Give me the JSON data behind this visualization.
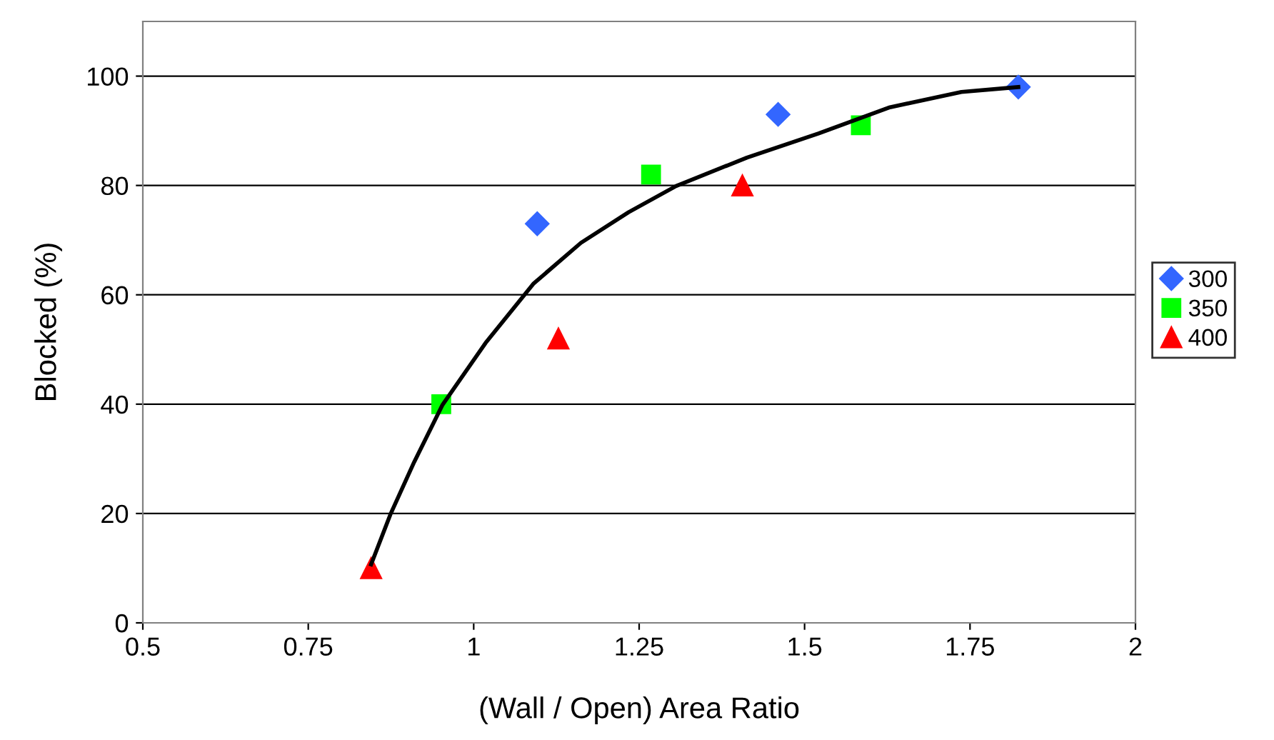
{
  "chart_data": {
    "type": "scatter",
    "xlabel": "(Wall / Open) Area Ratio",
    "ylabel": "Blocked (%)",
    "xlim": [
      0.5,
      2
    ],
    "xticks": [
      0.5,
      0.75,
      1,
      1.25,
      1.5,
      1.75,
      2
    ],
    "ylim": [
      0,
      110
    ],
    "yticks": [
      0,
      20,
      40,
      60,
      80,
      100
    ],
    "grid": "y",
    "legend": "right",
    "series": [
      {
        "name": "300",
        "color": "#3366ff",
        "marker": "diamond",
        "x": [
          1.096,
          1.46,
          1.823
        ],
        "values": [
          73,
          93,
          98
        ]
      },
      {
        "name": "350",
        "color": "#00ff00",
        "marker": "square",
        "x": [
          0.951,
          1.268,
          1.585
        ],
        "values": [
          40,
          82,
          91
        ]
      },
      {
        "name": "400",
        "color": "#ff0000",
        "marker": "triangle",
        "x": [
          0.845,
          1.128,
          1.406
        ],
        "values": [
          10,
          52,
          80
        ]
      },
      {
        "type": "line",
        "color": "#000000",
        "marker": "none",
        "x": [
          0.845,
          0.874,
          0.91,
          0.953,
          1.018,
          1.09,
          1.162,
          1.234,
          1.306,
          1.413,
          1.521,
          1.629,
          1.737,
          1.823
        ],
        "values": [
          10.7,
          19.8,
          29.4,
          39.9,
          51.2,
          62,
          69.5,
          75.1,
          79.9,
          85.1,
          89.5,
          94.3,
          97.1,
          98
        ]
      }
    ]
  }
}
